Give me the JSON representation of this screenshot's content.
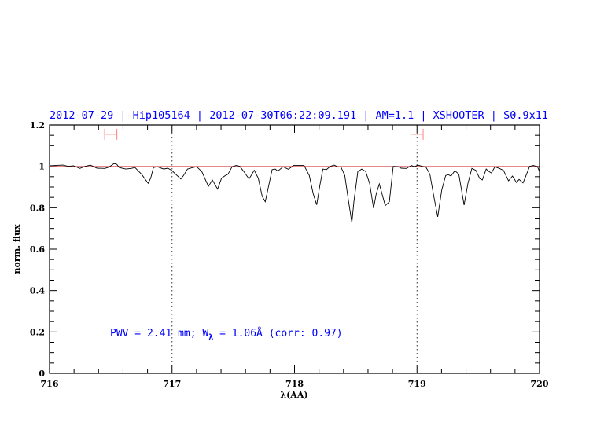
{
  "chart_data": {
    "type": "line",
    "title": "2012-07-29 | Hip105164 | 2012-07-30T06:22:09.191 | AM=1.1 | XSHOOTER | S0.9x11",
    "xlabel": "λ(AA)",
    "ylabel": "norm. flux",
    "xlim": [
      716,
      720
    ],
    "ylim": [
      0,
      1.2
    ],
    "x_ticks": [
      716,
      717,
      718,
      719,
      720
    ],
    "x_tick_labels": [
      "716",
      "717",
      "718",
      "719",
      "720"
    ],
    "y_ticks": [
      0,
      0.2,
      0.4,
      0.6,
      0.8,
      1,
      1.2
    ],
    "y_tick_labels": [
      "0",
      "0.2",
      "0.4",
      "0.6",
      "0.8",
      "1",
      "1.2"
    ],
    "x_minor_step": 0.2,
    "y_minor_step": 0.05,
    "grid": false,
    "continuum_level": 1.0,
    "vertical_markers": [
      717,
      719
    ],
    "ranges": [
      [
        716.45,
        716.55
      ],
      [
        718.95,
        719.05
      ]
    ],
    "range_level": 1.155,
    "annotation": {
      "prefix": "PWV = 2.41 mm; W",
      "subscript": "λ",
      "suffix": " = 1.06Å (corr: 0.97)"
    },
    "colors": {
      "spectrum": "#000000",
      "continuum": "#e06060",
      "ranges": "#ff8080",
      "title": "#0000ff",
      "annotation": "#0000ff"
    },
    "series": [
      {
        "x": [
          716.0,
          716.045,
          716.109,
          716.152,
          716.195,
          716.248,
          716.291,
          716.334,
          716.387,
          716.452,
          716.484,
          716.526,
          716.548,
          716.569,
          716.623,
          716.666,
          716.698,
          716.751,
          716.805,
          716.826,
          716.848,
          716.88,
          716.933,
          716.965,
          716.997,
          717.029,
          717.072,
          717.094,
          717.126,
          717.169,
          717.201,
          717.243,
          717.297,
          717.329,
          717.372,
          717.404,
          717.436,
          717.457,
          717.49,
          717.522,
          717.554,
          717.586,
          717.629,
          717.671,
          717.704,
          717.736,
          717.761,
          717.789,
          717.817,
          717.843,
          717.864,
          717.907,
          717.95,
          717.992,
          718.035,
          718.078,
          718.121,
          718.153,
          718.181,
          718.206,
          718.232,
          718.26,
          718.292,
          718.324,
          718.356,
          718.378,
          718.41,
          718.442,
          718.468,
          718.485,
          718.517,
          718.549,
          718.581,
          718.613,
          718.645,
          718.667,
          718.692,
          718.72,
          718.741,
          718.774,
          718.806,
          718.848,
          718.87,
          718.913,
          718.955,
          718.977,
          719.009,
          719.041,
          719.073,
          719.105,
          719.137,
          719.169,
          719.202,
          719.234,
          719.255,
          719.277,
          719.309,
          719.341,
          719.384,
          719.416,
          719.448,
          719.48,
          719.512,
          719.533,
          719.565,
          719.587,
          719.608,
          719.636,
          719.672,
          719.705,
          719.747,
          719.779,
          719.812,
          719.833,
          719.865,
          719.886,
          719.919,
          719.951,
          719.983,
          720.0
        ],
        "y": [
          1.003,
          1.004,
          1.006,
          1.0,
          1.003,
          0.99,
          1.0,
          1.006,
          0.991,
          0.99,
          0.996,
          1.013,
          1.01,
          0.994,
          0.987,
          0.99,
          0.994,
          0.962,
          0.918,
          0.943,
          0.994,
          0.998,
          0.987,
          0.991,
          0.981,
          0.962,
          0.939,
          0.956,
          0.987,
          0.994,
          0.998,
          0.975,
          0.903,
          0.934,
          0.89,
          0.943,
          0.956,
          0.962,
          0.998,
          1.004,
          1.0,
          0.975,
          0.939,
          0.981,
          0.943,
          0.855,
          0.829,
          0.905,
          0.984,
          0.987,
          0.977,
          0.998,
          0.986,
          1.004,
          1.004,
          1.004,
          0.956,
          0.867,
          0.814,
          0.905,
          0.987,
          0.984,
          1.0,
          1.006,
          0.996,
          0.998,
          0.956,
          0.829,
          0.728,
          0.829,
          0.975,
          0.987,
          0.975,
          0.918,
          0.798,
          0.867,
          0.915,
          0.855,
          0.81,
          0.829,
          1.0,
          0.998,
          0.991,
          0.99,
          1.004,
          0.998,
          1.006,
          1.0,
          0.996,
          0.962,
          0.855,
          0.756,
          0.886,
          0.956,
          0.96,
          0.953,
          0.979,
          0.962,
          0.813,
          0.918,
          0.99,
          0.981,
          0.941,
          0.934,
          0.987,
          0.975,
          0.968,
          0.998,
          0.99,
          0.981,
          0.93,
          0.953,
          0.922,
          0.937,
          0.92,
          0.949,
          1.0,
          1.004,
          0.998,
          0.975
        ]
      }
    ]
  }
}
